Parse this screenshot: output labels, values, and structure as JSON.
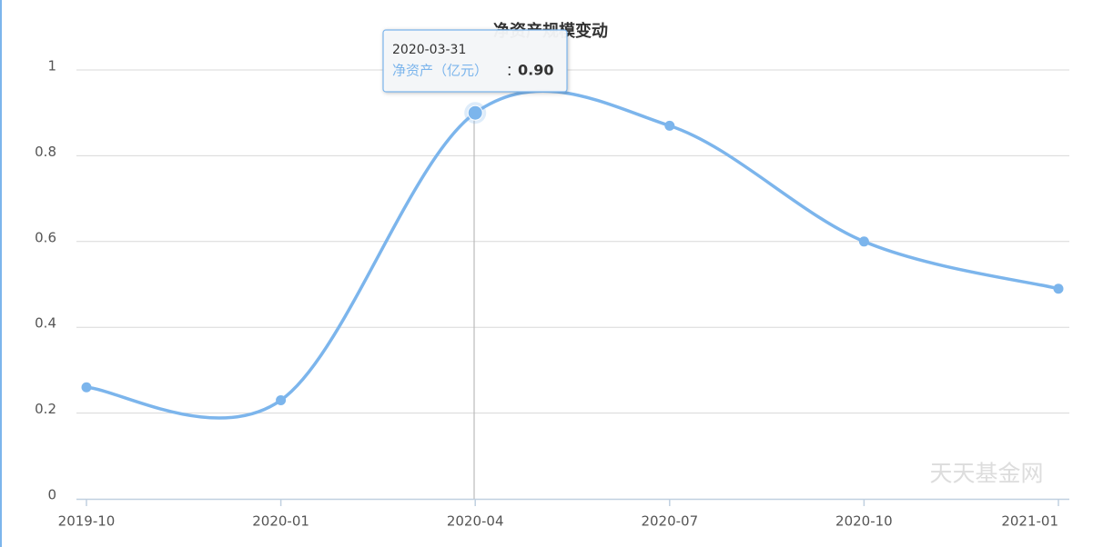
{
  "chart_data": {
    "type": "line",
    "title": "净资产规模变动",
    "categories": [
      "2019-10",
      "2020-01",
      "2020-04",
      "2020-07",
      "2020-10",
      "2021-01"
    ],
    "series": [
      {
        "name": "净资产（亿元）",
        "color": "#7cb5ec",
        "values": [
          0.26,
          0.23,
          0.9,
          0.87,
          0.6,
          0.49
        ]
      }
    ],
    "ylim": [
      0,
      1
    ],
    "yticks": [
      0,
      0.2,
      0.4,
      0.6,
      0.8,
      1
    ],
    "grid": true,
    "tooltip": {
      "date": "2020-03-31",
      "separator": "：",
      "value_label": "0.90"
    },
    "watermark": "天天基金网"
  }
}
